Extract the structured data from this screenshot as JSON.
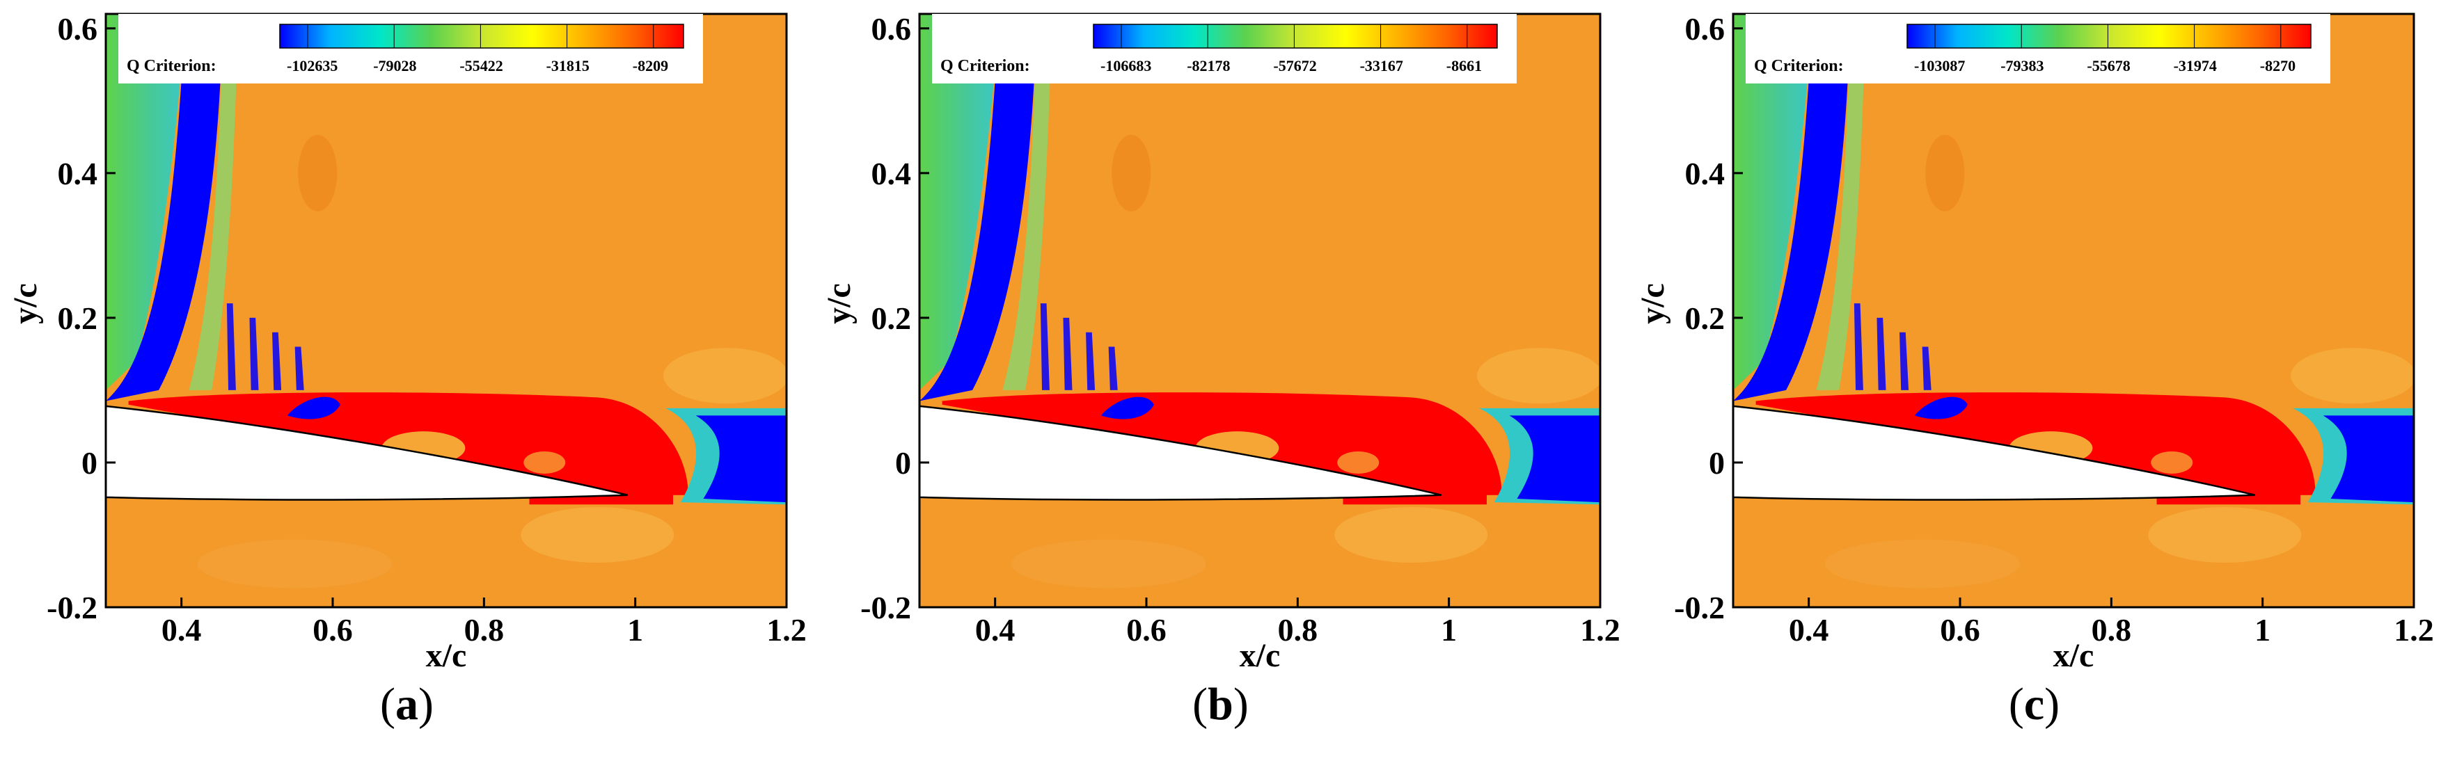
{
  "chart_data": [
    {
      "type": "heatmap",
      "panel_label": "a",
      "xlabel": "x/c",
      "ylabel": "y/c",
      "xlim": [
        0.3,
        1.2
      ],
      "ylim": [
        -0.2,
        0.62
      ],
      "x_ticks": [
        0.4,
        0.6,
        0.8,
        1,
        1.2
      ],
      "x_tick_labels": [
        "0.4",
        "0.6",
        "0.8",
        "1",
        "1.2"
      ],
      "y_ticks": [
        -0.2,
        0,
        0.2,
        0.4,
        0.6
      ],
      "y_tick_labels": [
        "-0.2",
        "0",
        "0.2",
        "0.4",
        "0.6"
      ],
      "colorbar": {
        "title": "Q Criterion:",
        "levels": [
          -102635,
          -79028,
          -55422,
          -31815,
          -8209
        ],
        "level_labels": [
          "-102635",
          "-79028",
          "-55422",
          "-31815",
          "-8209"
        ],
        "colormap": [
          "#0000ff",
          "#00b4ff",
          "#00e6c8",
          "#5ad250",
          "#c8e632",
          "#ffff00",
          "#ffb400",
          "#ff6400",
          "#ff0000"
        ],
        "placement": "top"
      },
      "trailing_separation_extent_x": 1.07
    },
    {
      "type": "heatmap",
      "panel_label": "b",
      "xlabel": "x/c",
      "ylabel": "y/c",
      "xlim": [
        0.3,
        1.2
      ],
      "ylim": [
        -0.2,
        0.62
      ],
      "x_ticks": [
        0.4,
        0.6,
        0.8,
        1,
        1.2
      ],
      "x_tick_labels": [
        "0.4",
        "0.6",
        "0.8",
        "1",
        "1.2"
      ],
      "y_ticks": [
        -0.2,
        0,
        0.2,
        0.4,
        0.6
      ],
      "y_tick_labels": [
        "-0.2",
        "0",
        "0.2",
        "0.4",
        "0.6"
      ],
      "colorbar": {
        "title": "Q Criterion:",
        "levels": [
          -106683,
          -82178,
          -57672,
          -33167,
          -8661
        ],
        "level_labels": [
          "-106683",
          "-82178",
          "-57672",
          "-33167",
          "-8661"
        ],
        "colormap": [
          "#0000ff",
          "#00b4ff",
          "#00e6c8",
          "#5ad250",
          "#c8e632",
          "#ffff00",
          "#ffb400",
          "#ff6400",
          "#ff0000"
        ],
        "placement": "top"
      },
      "trailing_separation_extent_x": 1.07
    },
    {
      "type": "heatmap",
      "panel_label": "c",
      "xlabel": "x/c",
      "ylabel": "y/c",
      "xlim": [
        0.3,
        1.2
      ],
      "ylim": [
        -0.2,
        0.62
      ],
      "x_ticks": [
        0.4,
        0.6,
        0.8,
        1,
        1.2
      ],
      "x_tick_labels": [
        "0.4",
        "0.6",
        "0.8",
        "1",
        "1.2"
      ],
      "y_ticks": [
        -0.2,
        0,
        0.2,
        0.4,
        0.6
      ],
      "y_tick_labels": [
        "-0.2",
        "0",
        "0.2",
        "0.4",
        "0.6"
      ],
      "colorbar": {
        "title": "Q Criterion:",
        "levels": [
          -103087,
          -79383,
          -55678,
          -31974,
          -8270
        ],
        "level_labels": [
          "-103087",
          "-79383",
          "-55678",
          "-31974",
          "-8270"
        ],
        "colormap": [
          "#0000ff",
          "#00b4ff",
          "#00e6c8",
          "#5ad250",
          "#c8e632",
          "#ffff00",
          "#ffb400",
          "#ff6400",
          "#ff0000"
        ],
        "placement": "top"
      },
      "trailing_separation_extent_x": 1.07
    }
  ],
  "colors": {
    "background_field": "#f39a2a",
    "vortex_core": "#0000ff",
    "high_q": "#ff0000",
    "freestream_left": "#3fc85a",
    "airfoil": "#ffffff"
  }
}
